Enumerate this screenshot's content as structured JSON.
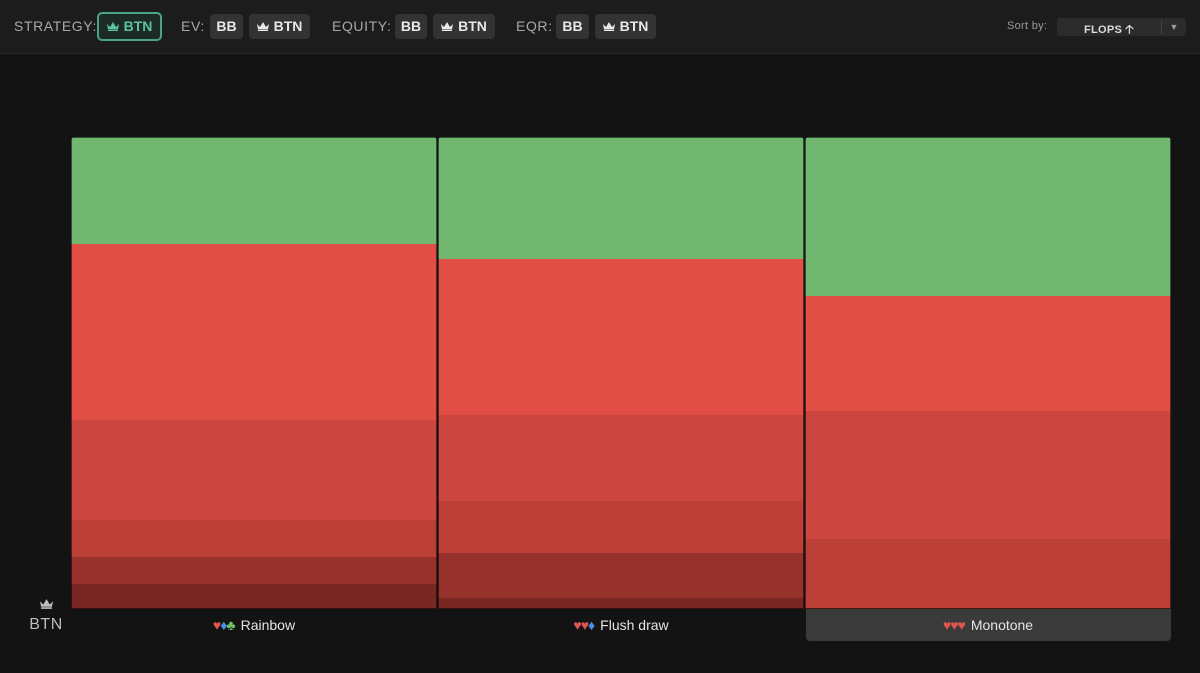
{
  "toolbar": {
    "strategy": {
      "label": "STRATEGY:",
      "buttons": [
        "BTN"
      ]
    },
    "ev": {
      "label": "EV:",
      "buttons": [
        "BB",
        "BTN"
      ]
    },
    "equity": {
      "label": "EQUITY:",
      "buttons": [
        "BB",
        "BTN"
      ]
    },
    "eqr": {
      "label": "EQR:",
      "buttons": [
        "BB",
        "BTN"
      ]
    },
    "sort": {
      "label": "Sort by:",
      "value": "FLOPS",
      "direction_icon": "arrow-up-icon",
      "dropdown_icon": "caret-down-icon"
    }
  },
  "position": {
    "name": "BTN",
    "icon": "crown-icon"
  },
  "colors": {
    "accent": "#4aa386",
    "heart": "#e05550",
    "diamond": "#4a8fe8",
    "club": "#6fbf6a"
  },
  "chart_data": {
    "type": "bar",
    "stacked": true,
    "normalized": true,
    "ylim": [
      0,
      100
    ],
    "categories": [
      "Rainbow",
      "Flush draw",
      "Monotone"
    ],
    "category_suits": [
      [
        "heart",
        "diamond",
        "club"
      ],
      [
        "heart",
        "heart",
        "diamond"
      ],
      [
        "heart",
        "heart",
        "heart"
      ]
    ],
    "selected_category": "Monotone",
    "series": [
      {
        "color": "#72b76f",
        "values": [
          22.7,
          25.9,
          33.7
        ]
      },
      {
        "color": "#e04e45",
        "values": [
          37.3,
          33.1,
          24.4
        ]
      },
      {
        "color": "#ca463e",
        "values": [
          21.2,
          18.2,
          27.0
        ]
      },
      {
        "color": "#bc3f38",
        "values": [
          7.8,
          11.0,
          14.6
        ]
      },
      {
        "color": "#97312b",
        "values": [
          5.7,
          9.5,
          0.3
        ]
      },
      {
        "color": "#7a2622",
        "values": [
          5.3,
          2.3,
          0.0
        ]
      }
    ]
  }
}
